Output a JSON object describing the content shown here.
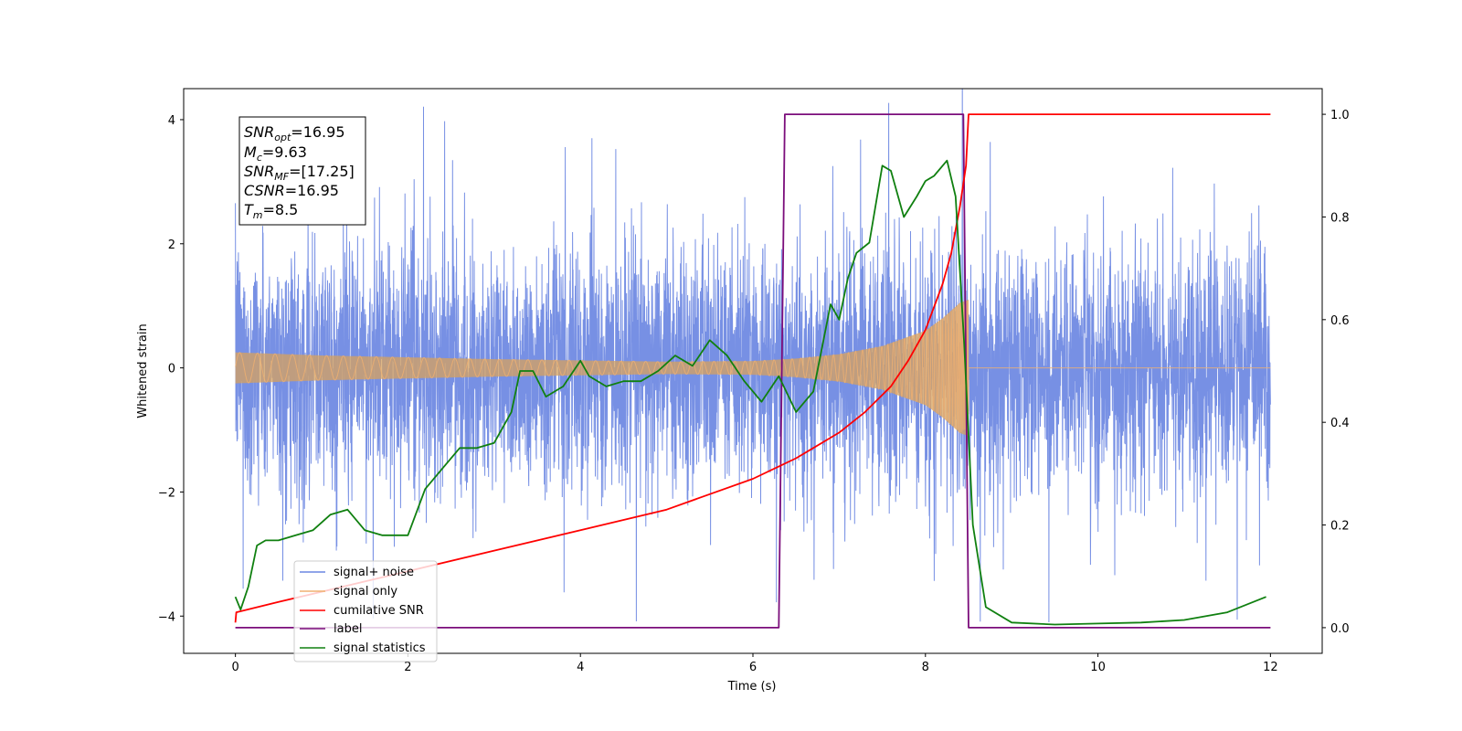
{
  "chart_data": {
    "type": "line",
    "xlabel": "Time (s)",
    "ylabel": "Whitened strain",
    "title": "",
    "xlim": [
      -0.6,
      12.6
    ],
    "ylim": [
      -4.6,
      4.5
    ],
    "y2lim": [
      -0.05,
      1.05
    ],
    "xticks": [
      0,
      2,
      4,
      6,
      8,
      10,
      12
    ],
    "yticks": [
      -4,
      -2,
      0,
      2,
      4
    ],
    "y2ticks": [
      0.0,
      0.2,
      0.4,
      0.6,
      0.8,
      1.0
    ],
    "grid": false,
    "legend_position": "lower-left",
    "info_box": {
      "line1": {
        "base": "SNR",
        "sub": "opt",
        "value": "=16.95"
      },
      "line2": {
        "base": "M",
        "sub": "c",
        "value": "=9.63"
      },
      "line3": {
        "base": "SNR",
        "sub": "MF",
        "value": "=[17.25]"
      },
      "line4": {
        "base": "CSNR",
        "sub": "",
        "value": "=16.95"
      },
      "line5": {
        "base": "T",
        "sub": "m",
        "value": "=8.5"
      }
    },
    "series": [
      {
        "name": "signal+ noise",
        "color": "#6b87e2",
        "axis": "left",
        "note_values": "noise envelope approx ±2.5 (peaks to ±4) over 0–12 s"
      },
      {
        "name": "signal only",
        "color": "#f0b070",
        "axis": "left",
        "amplitude_envelope": {
          "t": [
            0,
            1,
            2,
            3,
            4,
            5,
            6,
            6.5,
            7,
            7.5,
            8,
            8.2,
            8.4,
            8.5
          ],
          "a": [
            0.25,
            0.2,
            0.17,
            0.14,
            0.12,
            0.1,
            0.11,
            0.15,
            0.22,
            0.35,
            0.6,
            0.8,
            1.05,
            1.1
          ]
        }
      },
      {
        "name": "cumilative SNR",
        "color": "#ff0000",
        "axis": "right",
        "x": [
          0,
          0.01,
          0.5,
          1,
          2,
          3,
          4,
          5,
          5.5,
          6,
          6.5,
          7,
          7.3,
          7.6,
          7.8,
          8.0,
          8.2,
          8.3,
          8.4,
          8.47,
          8.5,
          12
        ],
        "y": [
          0.01,
          0.03,
          0.05,
          0.07,
          0.11,
          0.15,
          0.19,
          0.23,
          0.26,
          0.29,
          0.33,
          0.38,
          0.42,
          0.47,
          0.52,
          0.58,
          0.67,
          0.73,
          0.82,
          0.9,
          1.0,
          1.0
        ]
      },
      {
        "name": "label",
        "color": "#7b0d7b",
        "axis": "right",
        "x": [
          0,
          6.3,
          6.37,
          8.44,
          8.5,
          12
        ],
        "y": [
          0.0,
          0.0,
          1.0,
          1.0,
          0.0,
          0.0
        ]
      },
      {
        "name": "signal statistics",
        "color": "#108010",
        "axis": "right",
        "x": [
          0,
          0.06,
          0.15,
          0.25,
          0.35,
          0.5,
          0.7,
          0.9,
          1.1,
          1.3,
          1.5,
          1.7,
          2.0,
          2.2,
          2.4,
          2.6,
          2.8,
          3.0,
          3.2,
          3.3,
          3.45,
          3.6,
          3.8,
          4.0,
          4.1,
          4.3,
          4.5,
          4.7,
          4.9,
          5.1,
          5.3,
          5.5,
          5.7,
          5.9,
          6.1,
          6.3,
          6.5,
          6.7,
          6.9,
          7.0,
          7.1,
          7.2,
          7.35,
          7.5,
          7.6,
          7.75,
          7.9,
          8.0,
          8.1,
          8.25,
          8.35,
          8.45,
          8.55,
          8.7,
          9.0,
          9.5,
          10.0,
          10.5,
          11.0,
          11.5,
          11.95
        ],
        "y": [
          0.06,
          0.035,
          0.08,
          0.16,
          0.17,
          0.17,
          0.18,
          0.19,
          0.22,
          0.23,
          0.19,
          0.18,
          0.18,
          0.27,
          0.31,
          0.35,
          0.35,
          0.36,
          0.42,
          0.5,
          0.5,
          0.45,
          0.47,
          0.52,
          0.49,
          0.47,
          0.48,
          0.48,
          0.5,
          0.53,
          0.51,
          0.56,
          0.53,
          0.48,
          0.44,
          0.49,
          0.42,
          0.46,
          0.63,
          0.6,
          0.68,
          0.73,
          0.75,
          0.9,
          0.89,
          0.8,
          0.84,
          0.87,
          0.88,
          0.91,
          0.84,
          0.55,
          0.2,
          0.04,
          0.01,
          0.006,
          0.008,
          0.01,
          0.015,
          0.03,
          0.06
        ]
      }
    ]
  }
}
